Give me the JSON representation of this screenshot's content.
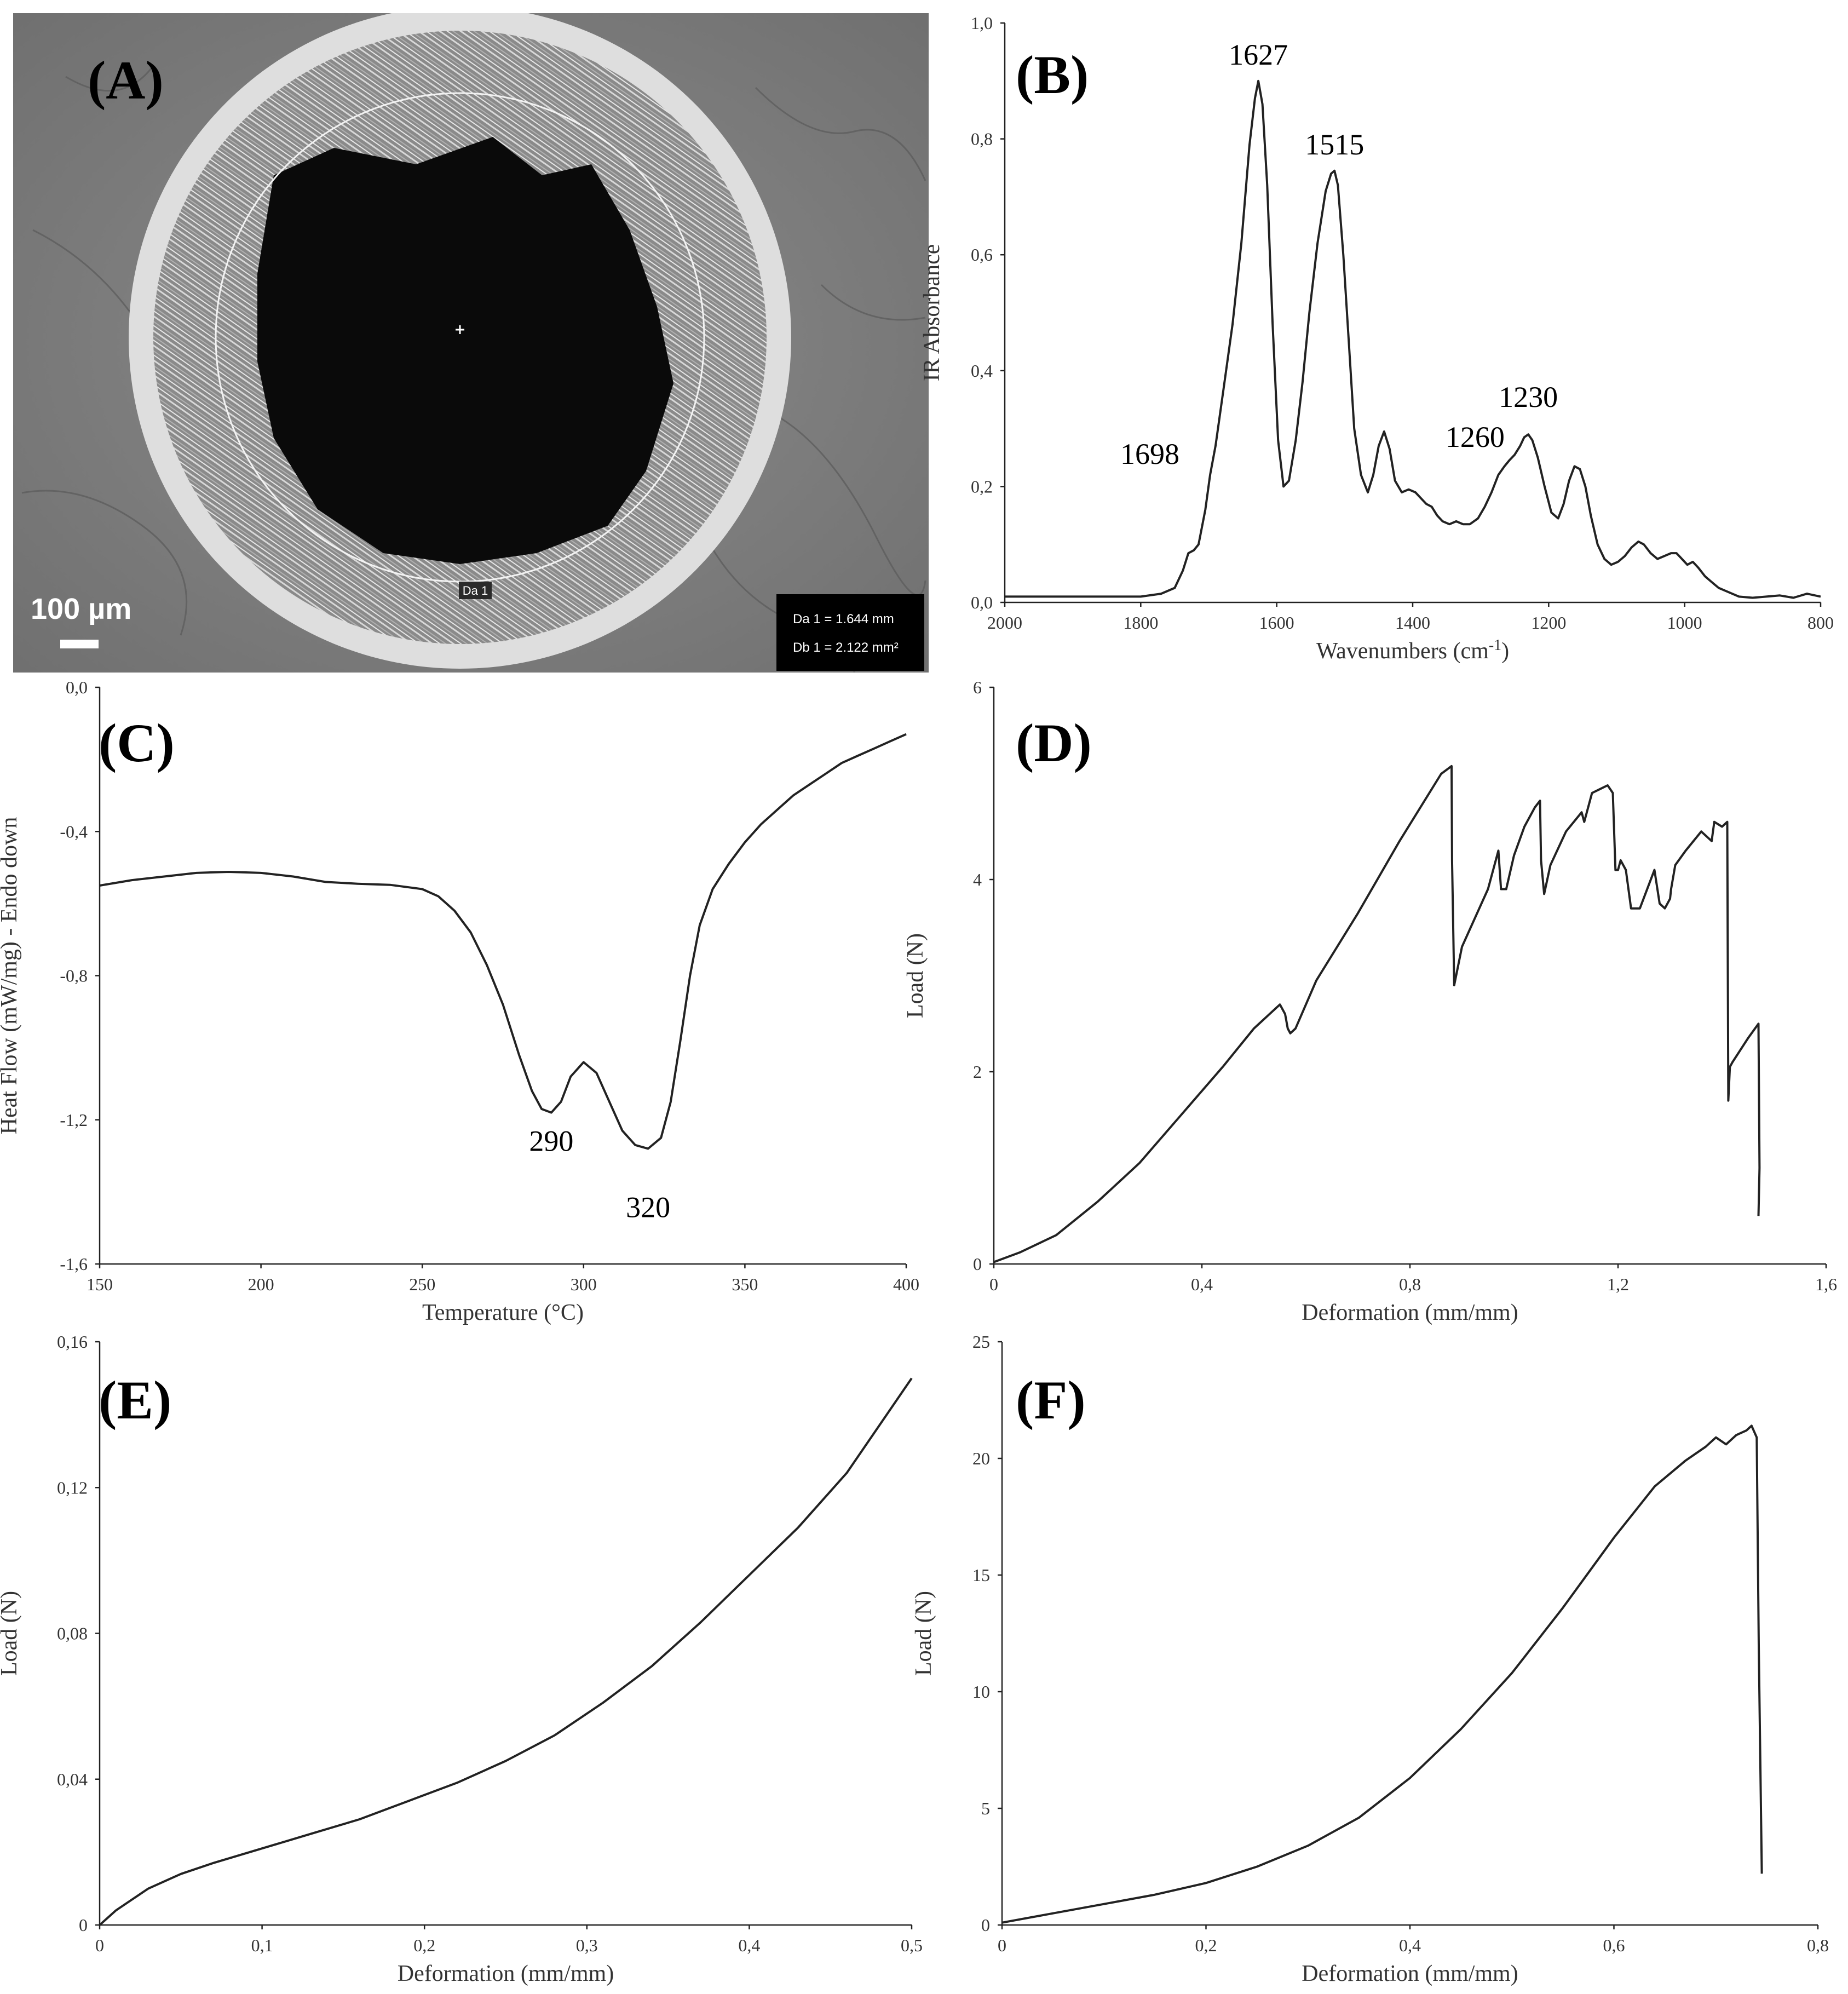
{
  "panelA": {
    "letter": "(A)",
    "scale_label": "100 µm",
    "circle_label": "Da 1",
    "info_line1": "Da 1 = 1.644 mm",
    "info_line2": "Db 1 = 2.122 mm²"
  },
  "chart_data": [
    {
      "panel": "(B)",
      "type": "line",
      "xlabel": "Wavenumbers (cm-1)",
      "ylabel": "IR Absorbance",
      "xlim": [
        2000,
        800
      ],
      "ylim": [
        0,
        1
      ],
      "x_reversed": true,
      "xticks": [
        "2000",
        "1800",
        "1600",
        "1400",
        "1200",
        "1000",
        "800"
      ],
      "yticks": [
        "0,0",
        "0,2",
        "0,4",
        "0,6",
        "0,8",
        "1,0"
      ],
      "series": [
        {
          "x": [
            2000,
            1960,
            1920,
            1880,
            1840,
            1800,
            1770,
            1750,
            1738,
            1730,
            1722,
            1715,
            1705,
            1698,
            1690,
            1678,
            1665,
            1652,
            1640,
            1632,
            1627,
            1621,
            1614,
            1606,
            1598,
            1590,
            1582,
            1572,
            1562,
            1552,
            1540,
            1528,
            1520,
            1515,
            1510,
            1502,
            1494,
            1486,
            1476,
            1466,
            1458,
            1450,
            1442,
            1434,
            1426,
            1416,
            1406,
            1396,
            1388,
            1380,
            1372,
            1364,
            1356,
            1346,
            1336,
            1326,
            1316,
            1304,
            1294,
            1284,
            1274,
            1265,
            1258,
            1250,
            1242,
            1236,
            1230,
            1224,
            1216,
            1206,
            1196,
            1186,
            1178,
            1170,
            1162,
            1154,
            1146,
            1138,
            1128,
            1118,
            1108,
            1098,
            1088,
            1078,
            1068,
            1060,
            1050,
            1040,
            1030,
            1020,
            1012,
            1004,
            996,
            988,
            980,
            970,
            960,
            950,
            940,
            920,
            900,
            880,
            860,
            840,
            820,
            800
          ],
          "y": [
            0.01,
            0.01,
            0.01,
            0.01,
            0.01,
            0.01,
            0.015,
            0.025,
            0.055,
            0.085,
            0.09,
            0.1,
            0.16,
            0.22,
            0.27,
            0.37,
            0.48,
            0.62,
            0.79,
            0.87,
            0.9,
            0.86,
            0.72,
            0.48,
            0.28,
            0.2,
            0.21,
            0.28,
            0.38,
            0.5,
            0.62,
            0.71,
            0.74,
            0.745,
            0.72,
            0.6,
            0.45,
            0.3,
            0.22,
            0.19,
            0.22,
            0.27,
            0.295,
            0.265,
            0.21,
            0.19,
            0.195,
            0.19,
            0.18,
            0.17,
            0.165,
            0.15,
            0.14,
            0.135,
            0.14,
            0.135,
            0.135,
            0.145,
            0.165,
            0.19,
            0.22,
            0.235,
            0.245,
            0.255,
            0.27,
            0.285,
            0.29,
            0.28,
            0.25,
            0.2,
            0.155,
            0.145,
            0.17,
            0.21,
            0.235,
            0.23,
            0.2,
            0.15,
            0.1,
            0.075,
            0.065,
            0.07,
            0.08,
            0.095,
            0.105,
            0.1,
            0.085,
            0.075,
            0.08,
            0.085,
            0.085,
            0.075,
            0.065,
            0.07,
            0.06,
            0.045,
            0.035,
            0.025,
            0.02,
            0.01,
            0.008,
            0.01,
            0.012,
            0.008,
            0.015,
            0.01
          ]
        }
      ],
      "annotations": [
        {
          "x": 1627,
          "y": 0.9,
          "text": "1627"
        },
        {
          "x": 1515,
          "y": 0.745,
          "text": "1515"
        },
        {
          "x": 1698,
          "y": 0.22,
          "text": "1698"
        },
        {
          "x": 1230,
          "y": 0.29,
          "text": "1230"
        },
        {
          "x": 1260,
          "y": 0.245,
          "text": "1260"
        }
      ]
    },
    {
      "panel": "(C)",
      "type": "line",
      "xlabel": "Temperature (°C)",
      "ylabel": "Heat Flow (mW/mg) - Endo down",
      "xlim": [
        150,
        400
      ],
      "ylim": [
        -1.6,
        0
      ],
      "xticks": [
        "150",
        "200",
        "250",
        "300",
        "350",
        "400"
      ],
      "yticks": [
        "-1,6",
        "-1,2",
        "-0,8",
        "-0,4",
        "0,0"
      ],
      "series": [
        {
          "x": [
            150,
            160,
            170,
            180,
            190,
            200,
            210,
            220,
            230,
            240,
            250,
            255,
            260,
            265,
            270,
            275,
            280,
            284,
            287,
            290,
            293,
            296,
            300,
            304,
            308,
            312,
            316,
            320,
            324,
            327,
            330,
            333,
            336,
            340,
            345,
            350,
            355,
            360,
            365,
            370,
            375,
            380,
            385,
            390,
            395,
            400
          ],
          "y": [
            -0.55,
            -0.535,
            -0.525,
            -0.515,
            -0.512,
            -0.515,
            -0.525,
            -0.54,
            -0.545,
            -0.548,
            -0.56,
            -0.58,
            -0.62,
            -0.68,
            -0.77,
            -0.88,
            -1.02,
            -1.12,
            -1.17,
            -1.18,
            -1.15,
            -1.08,
            -1.04,
            -1.07,
            -1.15,
            -1.23,
            -1.27,
            -1.28,
            -1.25,
            -1.15,
            -0.98,
            -0.8,
            -0.66,
            -0.56,
            -0.49,
            -0.43,
            -0.38,
            -0.34,
            -0.3,
            -0.27,
            -0.24,
            -0.21,
            -0.19,
            -0.17,
            -0.15,
            -0.13
          ]
        }
      ],
      "annotations": [
        {
          "x": 290,
          "y": -1.18,
          "text": "290"
        },
        {
          "x": 320,
          "y": -1.28,
          "text": "320"
        }
      ]
    },
    {
      "panel": "(D)",
      "type": "line",
      "xlabel": "Deformation (mm/mm)",
      "ylabel": "Load (N)",
      "xlim": [
        0,
        1.6
      ],
      "ylim": [
        0,
        6
      ],
      "xticks": [
        "0",
        "0,4",
        "0,8",
        "1,2",
        "1,6"
      ],
      "yticks": [
        "0",
        "2",
        "4",
        "6"
      ],
      "series": [
        {
          "x": [
            0,
            0.05,
            0.12,
            0.2,
            0.28,
            0.36,
            0.44,
            0.5,
            0.55,
            0.56,
            0.565,
            0.57,
            0.58,
            0.62,
            0.7,
            0.78,
            0.86,
            0.88,
            0.881,
            0.885,
            0.9,
            0.95,
            0.97,
            0.975,
            0.985,
            1.0,
            1.02,
            1.04,
            1.05,
            1.052,
            1.058,
            1.07,
            1.1,
            1.13,
            1.135,
            1.15,
            1.18,
            1.19,
            1.195,
            1.2,
            1.205,
            1.215,
            1.225,
            1.23,
            1.24,
            1.242,
            1.27,
            1.28,
            1.29,
            1.3,
            1.302,
            1.31,
            1.33,
            1.36,
            1.38,
            1.385,
            1.4,
            1.41,
            1.412,
            1.415,
            1.42,
            1.45,
            1.47,
            1.472,
            1.47
          ],
          "y": [
            0.02,
            0.12,
            0.3,
            0.65,
            1.05,
            1.55,
            2.05,
            2.45,
            2.7,
            2.6,
            2.45,
            2.4,
            2.45,
            2.95,
            3.65,
            4.4,
            5.1,
            5.18,
            4.2,
            2.9,
            3.3,
            3.9,
            4.3,
            3.9,
            3.9,
            4.25,
            4.55,
            4.75,
            4.82,
            4.2,
            3.85,
            4.15,
            4.5,
            4.7,
            4.6,
            4.9,
            4.98,
            4.9,
            4.1,
            4.1,
            4.2,
            4.1,
            3.7,
            3.7,
            3.7,
            3.7,
            4.1,
            3.75,
            3.7,
            3.8,
            3.9,
            4.15,
            4.3,
            4.5,
            4.4,
            4.6,
            4.55,
            4.6,
            1.7,
            2.05,
            2.1,
            2.35,
            2.5,
            1.0,
            0.5
          ]
        }
      ]
    },
    {
      "panel": "(E)",
      "type": "line",
      "xlabel": "Deformation (mm/mm)",
      "ylabel": "Load (N)",
      "xlim": [
        0,
        0.5
      ],
      "ylim": [
        0,
        0.16
      ],
      "xticks": [
        "0",
        "0,1",
        "0,2",
        "0,3",
        "0,4",
        "0,5"
      ],
      "yticks": [
        "0",
        "0,04",
        "0,08",
        "0,12",
        "0,16"
      ],
      "series": [
        {
          "x": [
            0,
            0.01,
            0.02,
            0.03,
            0.05,
            0.07,
            0.1,
            0.13,
            0.16,
            0.19,
            0.22,
            0.25,
            0.28,
            0.31,
            0.34,
            0.37,
            0.4,
            0.43,
            0.46,
            0.48,
            0.5
          ],
          "y": [
            0,
            0.004,
            0.007,
            0.01,
            0.014,
            0.017,
            0.021,
            0.025,
            0.029,
            0.034,
            0.039,
            0.045,
            0.052,
            0.061,
            0.071,
            0.083,
            0.096,
            0.109,
            0.124,
            0.137,
            0.15
          ]
        }
      ]
    },
    {
      "panel": "(F)",
      "type": "line",
      "xlabel": "Deformation (mm/mm)",
      "ylabel": "Load (N)",
      "xlim": [
        0,
        0.8
      ],
      "ylim": [
        0,
        25
      ],
      "xticks": [
        "0",
        "0,2",
        "0,4",
        "0,6",
        "0,8"
      ],
      "yticks": [
        "0",
        "5",
        "10",
        "15",
        "20",
        "25"
      ],
      "series": [
        {
          "x": [
            0,
            0.05,
            0.1,
            0.15,
            0.2,
            0.25,
            0.3,
            0.35,
            0.4,
            0.45,
            0.5,
            0.55,
            0.6,
            0.64,
            0.67,
            0.69,
            0.7,
            0.71,
            0.72,
            0.73,
            0.735,
            0.74,
            0.742,
            0.745
          ],
          "y": [
            0.1,
            0.5,
            0.9,
            1.3,
            1.8,
            2.5,
            3.4,
            4.6,
            6.3,
            8.4,
            10.8,
            13.6,
            16.6,
            18.8,
            19.9,
            20.5,
            20.9,
            20.6,
            21.0,
            21.2,
            21.4,
            20.9,
            12.0,
            2.2
          ]
        }
      ]
    }
  ]
}
